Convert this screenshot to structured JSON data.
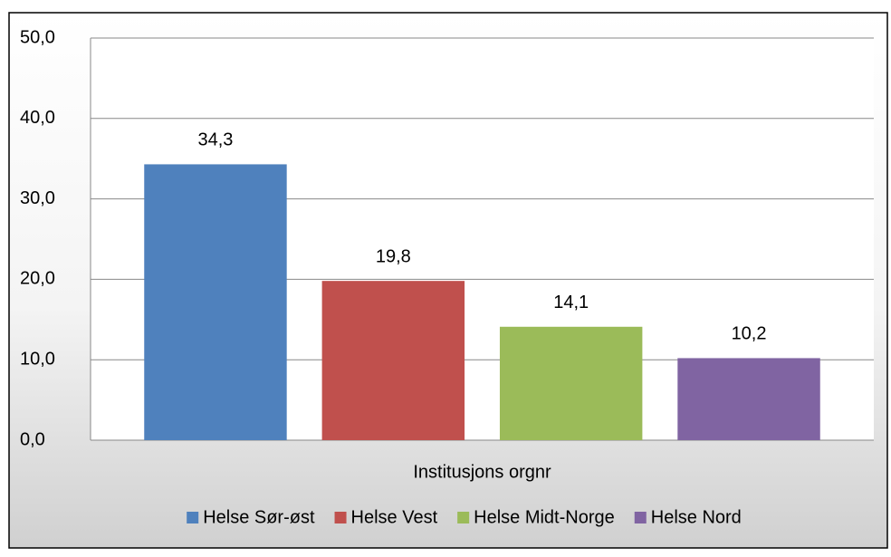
{
  "chart_data": {
    "type": "bar",
    "categories": [
      "Institusjons orgnr"
    ],
    "series": [
      {
        "name": "Helse Sør-øst",
        "color": "#4f81bd",
        "values": [
          34.3
        ],
        "value_labels": [
          "34,3"
        ]
      },
      {
        "name": "Helse Vest",
        "color": "#c0504d",
        "values": [
          19.8
        ],
        "value_labels": [
          "19,8"
        ]
      },
      {
        "name": "Helse Midt-Norge",
        "color": "#9bbb59",
        "values": [
          14.1
        ],
        "value_labels": [
          "14,1"
        ]
      },
      {
        "name": "Helse Nord",
        "color": "#8064a2",
        "values": [
          10.2
        ],
        "value_labels": [
          "10,2"
        ]
      }
    ],
    "ylim": [
      0,
      50
    ],
    "yticks": [
      {
        "value": 0,
        "label": "0,0"
      },
      {
        "value": 10,
        "label": "10,0"
      },
      {
        "value": 20,
        "label": "20,0"
      },
      {
        "value": 30,
        "label": "30,0"
      },
      {
        "value": 40,
        "label": "40,0"
      },
      {
        "value": 50,
        "label": "50,0"
      }
    ],
    "grid": true,
    "legend": "bottom"
  }
}
